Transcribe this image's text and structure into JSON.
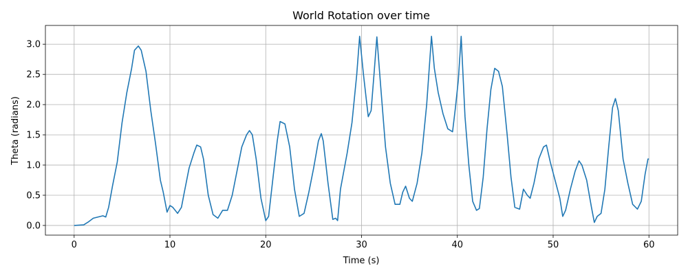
{
  "chart_data": {
    "type": "line",
    "title": "World Rotation over time",
    "xlabel": "Time (s)",
    "ylabel": "Theta (radians)",
    "x": [
      0,
      1,
      1.5,
      2,
      2.5,
      3,
      3.3,
      3.6,
      4,
      4.5,
      5,
      5.5,
      6,
      6.3,
      6.7,
      7,
      7.5,
      8,
      8.5,
      9,
      9.3,
      9.7,
      10,
      10.3,
      10.8,
      11.2,
      11.5,
      12,
      12.5,
      12.8,
      13.2,
      13.5,
      14,
      14.5,
      15,
      15.5,
      16,
      16.5,
      17,
      17.5,
      18,
      18.3,
      18.6,
      19,
      19.5,
      20,
      20.3,
      20.8,
      21.2,
      21.5,
      22,
      22.5,
      23,
      23.5,
      24,
      24.5,
      25,
      25.5,
      25.8,
      26,
      26.5,
      27,
      27.3,
      27.5,
      27.8,
      28.5,
      29,
      29.5,
      29.8,
      30.2,
      30.7,
      31,
      31.3,
      31.6,
      32,
      32.5,
      33,
      33.5,
      34,
      34.3,
      34.6,
      35,
      35.3,
      35.8,
      36.3,
      36.8,
      37.3,
      37.6,
      38,
      38.5,
      39,
      39.5,
      39.8,
      40.1,
      40.4,
      40.8,
      41.2,
      41.6,
      42,
      42.3,
      42.7,
      43.1,
      43.5,
      43.9,
      44.3,
      44.7,
      45.2,
      45.6,
      46,
      46.5,
      46.9,
      47.3,
      47.6,
      48,
      48.5,
      49,
      49.3,
      49.7,
      50.2,
      50.7,
      51,
      51.3,
      51.8,
      52.3,
      52.7,
      53,
      53.5,
      54,
      54.3,
      54.6,
      55,
      55.4,
      55.8,
      56.2,
      56.5,
      56.8,
      57.3,
      57.8,
      58.3,
      58.8,
      59.2,
      59.6,
      59.9,
      60
    ],
    "series": [
      {
        "name": "theta",
        "color": "#1f77b4",
        "values": [
          0,
          0.01,
          0.06,
          0.12,
          0.14,
          0.16,
          0.14,
          0.3,
          0.65,
          1.05,
          1.7,
          2.2,
          2.6,
          2.9,
          2.97,
          2.9,
          2.55,
          1.9,
          1.35,
          0.75,
          0.55,
          0.22,
          0.33,
          0.3,
          0.2,
          0.3,
          0.55,
          0.95,
          1.2,
          1.33,
          1.3,
          1.1,
          0.5,
          0.18,
          0.12,
          0.25,
          0.25,
          0.5,
          0.9,
          1.3,
          1.5,
          1.57,
          1.5,
          1.1,
          0.45,
          0.08,
          0.15,
          0.85,
          1.4,
          1.72,
          1.68,
          1.3,
          0.6,
          0.15,
          0.2,
          0.55,
          0.95,
          1.4,
          1.52,
          1.4,
          0.7,
          0.1,
          0.12,
          0.08,
          0.6,
          1.2,
          1.7,
          2.5,
          3.13,
          2.5,
          1.8,
          1.9,
          2.5,
          3.12,
          2.3,
          1.3,
          0.7,
          0.35,
          0.35,
          0.55,
          0.65,
          0.45,
          0.4,
          0.7,
          1.2,
          2.0,
          3.13,
          2.6,
          2.2,
          1.85,
          1.6,
          1.55,
          1.95,
          2.4,
          3.13,
          1.8,
          1.0,
          0.4,
          0.25,
          0.28,
          0.8,
          1.6,
          2.25,
          2.6,
          2.55,
          2.3,
          1.5,
          0.8,
          0.3,
          0.27,
          0.6,
          0.5,
          0.45,
          0.7,
          1.1,
          1.3,
          1.33,
          1.05,
          0.75,
          0.45,
          0.15,
          0.25,
          0.6,
          0.9,
          1.07,
          1.0,
          0.75,
          0.3,
          0.05,
          0.15,
          0.2,
          0.6,
          1.3,
          1.95,
          2.1,
          1.9,
          1.1,
          0.7,
          0.35,
          0.27,
          0.4,
          0.85,
          1.1,
          1.1
        ]
      }
    ],
    "xlim": [
      -3,
      63
    ],
    "ylim": [
      -0.16,
      3.31
    ],
    "xticks": [
      0,
      10,
      20,
      30,
      40,
      50,
      60
    ],
    "yticks": [
      {
        "value": 0,
        "label": "0.0"
      },
      {
        "value": 0.5,
        "label": "0.5"
      },
      {
        "value": 1,
        "label": "1.0"
      },
      {
        "value": 1.5,
        "label": "1.5"
      },
      {
        "value": 2,
        "label": "2.0"
      },
      {
        "value": 2.5,
        "label": "2.5"
      },
      {
        "value": 3,
        "label": "3.0"
      }
    ],
    "grid": true
  }
}
